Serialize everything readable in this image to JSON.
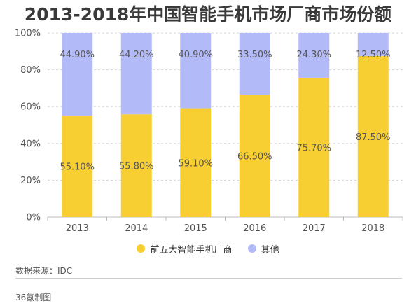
{
  "title": "2013-2018年中国智能手机市场厂商市场份额",
  "source": "数据来源：IDC",
  "credit": "36氪制图",
  "colors": {
    "top5": "#F8CF33",
    "others": "#B3BAF8",
    "grid": "#D6D6D6",
    "axis": "#BBBBBB",
    "label": "#555555"
  },
  "chart_data": {
    "type": "bar",
    "stacked": true,
    "title": "2013-2018年中国智能手机市场厂商市场份额",
    "categories": [
      "2013",
      "2014",
      "2015",
      "2016",
      "2017",
      "2018"
    ],
    "series": [
      {
        "name": "前五大智能手机厂商",
        "values": [
          55.1,
          55.8,
          59.1,
          66.5,
          75.7,
          87.5
        ],
        "labels": [
          "55.10%",
          "55.80%",
          "59.10%",
          "66.50%",
          "75.70%",
          "87.50%"
        ]
      },
      {
        "name": "其他",
        "values": [
          44.9,
          44.2,
          40.9,
          33.5,
          24.3,
          12.5
        ],
        "labels": [
          "44.90%",
          "44.20%",
          "40.90%",
          "33.50%",
          "24.30%",
          "12.50%"
        ]
      }
    ],
    "yticks": [
      "0%",
      "20%",
      "40%",
      "60%",
      "80%",
      "100%"
    ],
    "ylim": [
      0,
      100
    ],
    "grid": true,
    "legend_position": "bottom"
  }
}
